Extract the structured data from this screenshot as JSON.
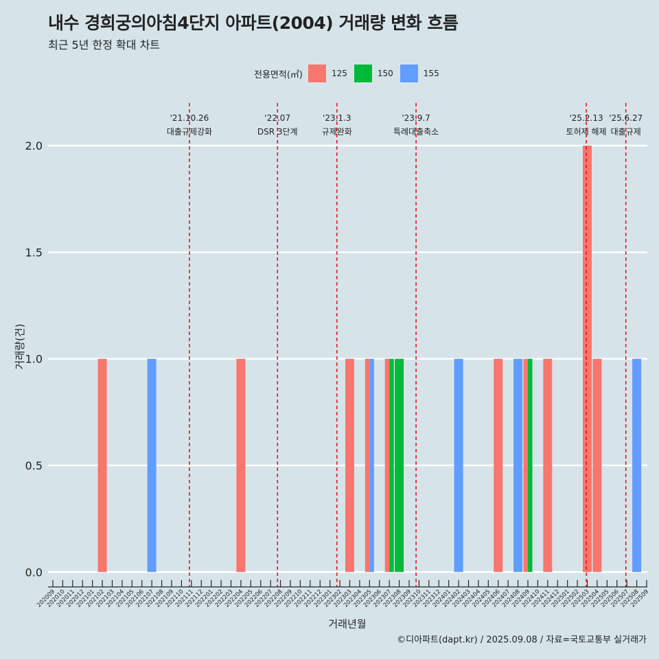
{
  "title": "내수 경희궁의아침4단지 아파트(2004) 거래량 변화 흐름",
  "subtitle": "최근 5년 한정 확대 차트",
  "caption": "©디아파트(dapt.kr) / 2025.09.08 / 자료=국토교통부 실거래가",
  "colors": {
    "125": "#f8766d",
    "150": "#00ba38",
    "155": "#619cff",
    "event_line": "#e8141e"
  },
  "chart_data": {
    "type": "bar",
    "xlabel": "거래년월",
    "ylabel": "거래량(건)",
    "ylim": [
      -0.07,
      2.2
    ],
    "y_ticks": [
      "0.0",
      "0.5",
      "1.0",
      "1.5",
      "2.0"
    ],
    "legend_title": "전용면적(㎡)",
    "legend_position": "top",
    "categories": [
      "202009",
      "202010",
      "202011",
      "202012",
      "202101",
      "202102",
      "202103",
      "202104",
      "202105",
      "202106",
      "202107",
      "202108",
      "202109",
      "202110",
      "202111",
      "202112",
      "202201",
      "202202",
      "202203",
      "202204",
      "202205",
      "202206",
      "202207",
      "202208",
      "202209",
      "202210",
      "202211",
      "202212",
      "202301",
      "202302",
      "202303",
      "202304",
      "202305",
      "202306",
      "202307",
      "202308",
      "202309",
      "202310",
      "202311",
      "202312",
      "202401",
      "202402",
      "202403",
      "202404",
      "202405",
      "202406",
      "202407",
      "202408",
      "202409",
      "202410",
      "202411",
      "202412",
      "202501",
      "202502",
      "202503",
      "202504",
      "202505",
      "202506",
      "202507",
      "202508",
      "202509"
    ],
    "bars": [
      {
        "month": "202102",
        "area": "125",
        "value": 1
      },
      {
        "month": "202107",
        "area": "155",
        "value": 1
      },
      {
        "month": "202204",
        "area": "125",
        "value": 1
      },
      {
        "month": "202303",
        "area": "125",
        "value": 1
      },
      {
        "month": "202305",
        "area": "125",
        "value": 1
      },
      {
        "month": "202305",
        "area": "155",
        "value": 1
      },
      {
        "month": "202307",
        "area": "125",
        "value": 1
      },
      {
        "month": "202307",
        "area": "150",
        "value": 1
      },
      {
        "month": "202308",
        "area": "150",
        "value": 1
      },
      {
        "month": "202402",
        "area": "155",
        "value": 1
      },
      {
        "month": "202406",
        "area": "125",
        "value": 1
      },
      {
        "month": "202408",
        "area": "155",
        "value": 1
      },
      {
        "month": "202409",
        "area": "125",
        "value": 1
      },
      {
        "month": "202409",
        "area": "150",
        "value": 1
      },
      {
        "month": "202411",
        "area": "125",
        "value": 1
      },
      {
        "month": "202503",
        "area": "125",
        "value": 2
      },
      {
        "month": "202504",
        "area": "125",
        "value": 1
      },
      {
        "month": "202508",
        "area": "155",
        "value": 1
      }
    ],
    "series": [
      {
        "name": "125"
      },
      {
        "name": "150"
      },
      {
        "name": "155"
      }
    ],
    "events": [
      {
        "date": "'21.10.26",
        "label": "대출규제강화",
        "month_index": 13.8
      },
      {
        "date": "'22.07",
        "label": "DSR 3단계",
        "month_index": 22.7
      },
      {
        "date": "'23.1.3",
        "label": "규제완화",
        "month_index": 28.7
      },
      {
        "date": "'23.9.7",
        "label": "특례대출축소",
        "month_index": 36.7
      },
      {
        "date": "'25.2.13",
        "label": "토허제 해제",
        "month_index": 53.9
      },
      {
        "date": "'25.6.27",
        "label": "대출규제",
        "month_index": 57.9
      }
    ]
  }
}
